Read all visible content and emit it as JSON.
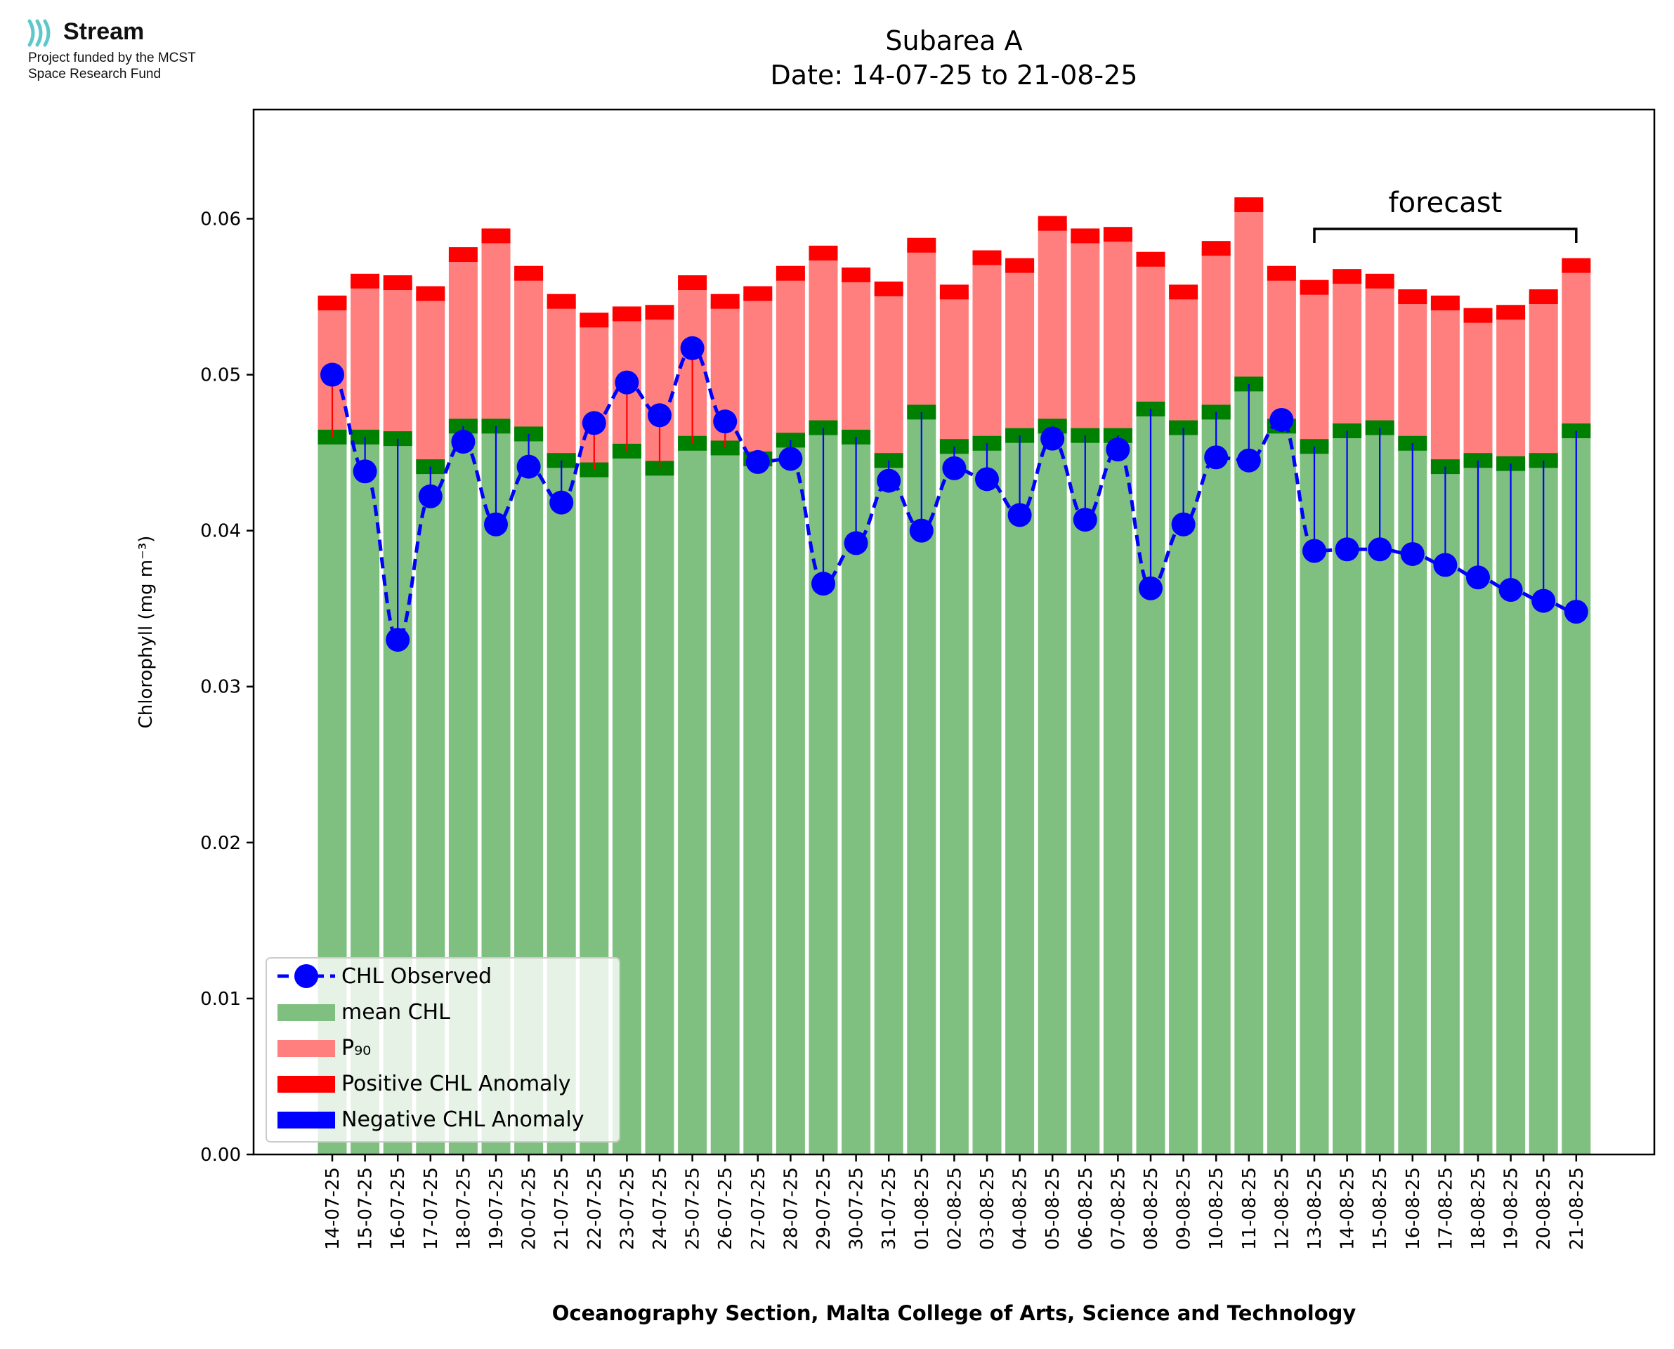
{
  "logo": {
    "brand": "Stream",
    "line1": "Project funded by the MCST",
    "line2": "Space Research Fund",
    "icon": "stream-waves-icon",
    "color": "#5ec8c8"
  },
  "chart_data": {
    "type": "bar",
    "title": "Subarea A",
    "subtitle": "Date: 14-07-25 to 21-08-25",
    "xlabel": "Oceanography Section, Malta College of Arts, Science and Technology",
    "ylabel": "Chlorophyll (mg m⁻³)",
    "ylim": [
      0,
      0.067
    ],
    "yticks": [
      "0.00",
      "0.01",
      "0.02",
      "0.03",
      "0.04",
      "0.05",
      "0.06"
    ],
    "categories": [
      "14-07-25",
      "15-07-25",
      "16-07-25",
      "17-07-25",
      "18-07-25",
      "19-07-25",
      "20-07-25",
      "21-07-25",
      "22-07-25",
      "23-07-25",
      "24-07-25",
      "25-07-25",
      "26-07-25",
      "27-07-25",
      "28-07-25",
      "29-07-25",
      "30-07-25",
      "31-07-25",
      "01-08-25",
      "02-08-25",
      "03-08-25",
      "04-08-25",
      "05-08-25",
      "06-08-25",
      "07-08-25",
      "08-08-25",
      "09-08-25",
      "10-08-25",
      "11-08-25",
      "12-08-25",
      "13-08-25",
      "14-08-25",
      "15-08-25",
      "16-08-25",
      "17-08-25",
      "18-08-25",
      "19-08-25",
      "20-08-25",
      "21-08-25"
    ],
    "series": [
      {
        "name": "CHL Observed",
        "color": "#0000ff",
        "values": [
          0.05,
          0.0438,
          0.033,
          0.0422,
          0.0457,
          0.0404,
          0.0441,
          0.0418,
          0.0469,
          0.0495,
          0.0474,
          0.0517,
          0.047,
          0.0444,
          0.0446,
          0.0366,
          0.0392,
          0.0432,
          0.04,
          0.044,
          0.0433,
          0.041,
          0.0459,
          0.0407,
          0.0452,
          0.0363,
          0.0404,
          0.0447,
          0.0445,
          0.0471,
          0.0387,
          0.0388,
          0.0388,
          0.0385,
          0.0378,
          0.037,
          0.0362,
          0.0355,
          0.0348
        ]
      },
      {
        "name": "mean CHL",
        "color": "#7fbf7f",
        "values": [
          0.046,
          0.046,
          0.0459,
          0.0441,
          0.0467,
          0.0467,
          0.0462,
          0.0445,
          0.0439,
          0.0451,
          0.044,
          0.0456,
          0.0453,
          0.0446,
          0.0458,
          0.0466,
          0.046,
          0.0445,
          0.0476,
          0.0454,
          0.0456,
          0.0461,
          0.0467,
          0.0461,
          0.0461,
          0.0478,
          0.0466,
          0.0476,
          0.0494,
          0.0467,
          0.0454,
          0.0464,
          0.0466,
          0.0456,
          0.0441,
          0.0445,
          0.0443,
          0.0445,
          0.0464
        ]
      },
      {
        "name": "P₉₀",
        "color": "#ff7f7f",
        "values": [
          0.0546,
          0.056,
          0.0559,
          0.0552,
          0.0577,
          0.0589,
          0.0565,
          0.0547,
          0.0535,
          0.0539,
          0.054,
          0.0559,
          0.0547,
          0.0552,
          0.0565,
          0.0578,
          0.0564,
          0.0555,
          0.0583,
          0.0553,
          0.0575,
          0.057,
          0.0597,
          0.0589,
          0.059,
          0.0574,
          0.0553,
          0.0581,
          0.0609,
          0.0565,
          0.0556,
          0.0563,
          0.056,
          0.055,
          0.0546,
          0.0538,
          0.054,
          0.055,
          0.057
        ]
      },
      {
        "name": "Positive CHL Anomaly",
        "color": "#ff0000"
      },
      {
        "name": "Negative CHL Anomaly",
        "color": "#0000ff"
      }
    ],
    "legend_position": "lower-left",
    "annotation": {
      "text": "forecast",
      "from": "13-08-25",
      "to": "21-08-25"
    },
    "grid": false
  }
}
